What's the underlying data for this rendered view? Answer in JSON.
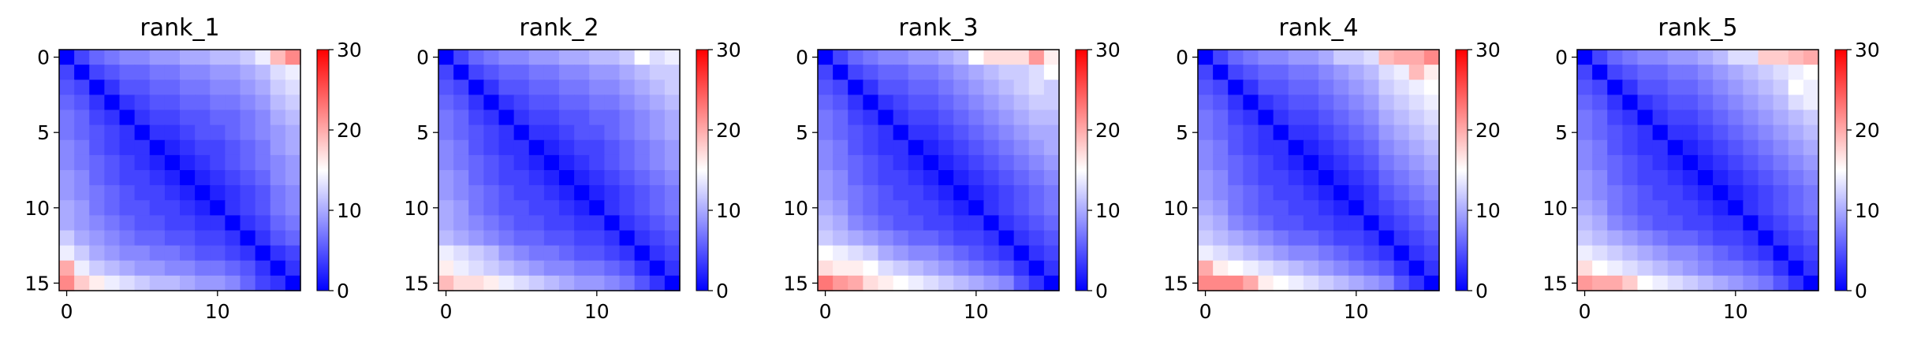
{
  "colorbar": {
    "min": 0,
    "max": 30,
    "ticks": [
      "0",
      "10",
      "20",
      "30"
    ],
    "colors": [
      "#0000ff",
      "#ffffff",
      "#ff0000"
    ],
    "colormap": "bwr"
  },
  "chart_data": [
    {
      "type": "heatmap",
      "title": "rank_1",
      "size": 16,
      "x_ticks": [
        "0",
        "10"
      ],
      "y_ticks": [
        "0",
        "5",
        "10",
        "15"
      ],
      "values": [
        [
          0,
          4,
          6,
          7,
          8,
          8,
          9,
          9,
          10,
          10,
          11,
          11,
          12,
          14,
          19,
          22
        ],
        [
          4,
          0,
          4,
          5,
          6,
          6,
          7,
          7,
          8,
          8,
          9,
          9,
          10,
          11,
          13,
          14
        ],
        [
          5,
          4,
          0,
          3,
          5,
          5,
          6,
          6,
          7,
          7,
          8,
          8,
          9,
          10,
          12,
          13
        ],
        [
          6,
          5,
          3,
          0,
          3,
          4,
          5,
          5,
          6,
          6,
          7,
          7,
          8,
          9,
          11,
          12
        ],
        [
          7,
          6,
          4,
          3,
          0,
          3,
          4,
          4,
          5,
          5,
          6,
          6,
          7,
          8,
          10,
          11
        ],
        [
          7,
          6,
          5,
          4,
          3,
          0,
          3,
          3,
          4,
          5,
          5,
          6,
          7,
          8,
          9,
          10
        ],
        [
          8,
          7,
          5,
          4,
          3,
          3,
          0,
          2,
          3,
          4,
          4,
          5,
          6,
          7,
          9,
          10
        ],
        [
          8,
          7,
          6,
          5,
          4,
          3,
          2,
          0,
          2,
          3,
          4,
          5,
          6,
          7,
          8,
          9
        ],
        [
          9,
          8,
          6,
          5,
          4,
          4,
          3,
          2,
          0,
          2,
          3,
          4,
          5,
          6,
          8,
          9
        ],
        [
          9,
          8,
          7,
          6,
          5,
          4,
          4,
          3,
          2,
          0,
          2,
          3,
          4,
          5,
          7,
          8
        ],
        [
          10,
          9,
          7,
          6,
          5,
          5,
          4,
          4,
          3,
          2,
          0,
          3,
          4,
          5,
          7,
          8
        ],
        [
          10,
          9,
          8,
          7,
          6,
          5,
          5,
          4,
          4,
          3,
          3,
          0,
          3,
          4,
          6,
          7
        ],
        [
          12,
          10,
          9,
          8,
          7,
          6,
          6,
          5,
          5,
          4,
          4,
          3,
          0,
          3,
          5,
          6
        ],
        [
          14,
          12,
          10,
          9,
          8,
          8,
          7,
          7,
          6,
          5,
          5,
          4,
          3,
          0,
          3,
          4
        ],
        [
          20,
          14,
          12,
          11,
          10,
          9,
          9,
          8,
          8,
          7,
          7,
          6,
          5,
          3,
          0,
          3
        ],
        [
          22,
          18,
          16,
          14,
          13,
          12,
          11,
          11,
          10,
          9,
          9,
          8,
          6,
          4,
          3,
          0
        ]
      ]
    },
    {
      "type": "heatmap",
      "title": "rank_2",
      "size": 16,
      "x_ticks": [
        "0",
        "10"
      ],
      "y_ticks": [
        "0",
        "5",
        "10",
        "15"
      ],
      "values": [
        [
          0,
          4,
          6,
          7,
          8,
          8,
          9,
          9,
          10,
          10,
          11,
          11,
          12,
          15,
          13,
          14
        ],
        [
          4,
          0,
          4,
          5,
          6,
          6,
          7,
          7,
          8,
          8,
          9,
          9,
          10,
          11,
          12,
          12
        ],
        [
          5,
          4,
          0,
          3,
          5,
          5,
          6,
          6,
          7,
          7,
          8,
          8,
          9,
          10,
          11,
          12
        ],
        [
          6,
          5,
          3,
          0,
          3,
          4,
          5,
          5,
          6,
          6,
          7,
          7,
          8,
          9,
          10,
          11
        ],
        [
          7,
          6,
          4,
          3,
          0,
          3,
          4,
          4,
          5,
          5,
          6,
          6,
          7,
          8,
          9,
          10
        ],
        [
          7,
          6,
          5,
          4,
          3,
          0,
          3,
          3,
          4,
          5,
          5,
          6,
          7,
          8,
          9,
          10
        ],
        [
          8,
          7,
          5,
          4,
          3,
          3,
          0,
          2,
          3,
          4,
          4,
          5,
          6,
          7,
          8,
          9
        ],
        [
          8,
          7,
          6,
          5,
          4,
          3,
          2,
          0,
          2,
          3,
          4,
          5,
          6,
          7,
          8,
          9
        ],
        [
          9,
          8,
          6,
          5,
          4,
          4,
          3,
          2,
          0,
          2,
          3,
          4,
          5,
          6,
          7,
          8
        ],
        [
          9,
          8,
          7,
          6,
          5,
          4,
          4,
          3,
          2,
          0,
          2,
          3,
          4,
          5,
          6,
          7
        ],
        [
          10,
          9,
          7,
          6,
          5,
          5,
          4,
          4,
          3,
          2,
          0,
          3,
          4,
          5,
          6,
          7
        ],
        [
          10,
          9,
          8,
          7,
          6,
          5,
          5,
          4,
          4,
          3,
          3,
          0,
          3,
          4,
          5,
          6
        ],
        [
          11,
          10,
          9,
          8,
          7,
          6,
          6,
          5,
          5,
          4,
          4,
          3,
          0,
          3,
          4,
          5
        ],
        [
          14,
          13,
          12,
          11,
          9,
          8,
          7,
          7,
          6,
          5,
          5,
          4,
          3,
          0,
          3,
          4
        ],
        [
          16,
          14,
          13,
          12,
          11,
          10,
          9,
          8,
          8,
          7,
          7,
          6,
          5,
          3,
          0,
          3
        ],
        [
          19,
          17,
          17,
          16,
          14,
          13,
          12,
          11,
          10,
          9,
          9,
          8,
          7,
          5,
          3,
          0
        ]
      ]
    },
    {
      "type": "heatmap",
      "title": "rank_3",
      "size": 16,
      "x_ticks": [
        "0",
        "10"
      ],
      "y_ticks": [
        "0",
        "5",
        "10",
        "15"
      ],
      "values": [
        [
          0,
          4,
          6,
          7,
          8,
          8,
          9,
          9,
          10,
          11,
          15,
          17,
          17,
          17,
          21,
          16
        ],
        [
          4,
          0,
          4,
          5,
          6,
          6,
          7,
          7,
          8,
          9,
          10,
          11,
          12,
          12,
          13,
          15
        ],
        [
          5,
          4,
          0,
          3,
          5,
          5,
          6,
          6,
          7,
          8,
          9,
          10,
          11,
          12,
          13,
          12
        ],
        [
          6,
          5,
          3,
          0,
          3,
          4,
          5,
          5,
          6,
          7,
          8,
          9,
          10,
          11,
          12,
          12
        ],
        [
          7,
          6,
          4,
          3,
          0,
          3,
          4,
          4,
          5,
          6,
          7,
          8,
          9,
          10,
          11,
          11
        ],
        [
          7,
          6,
          5,
          4,
          3,
          0,
          3,
          3,
          4,
          5,
          6,
          7,
          8,
          9,
          10,
          10
        ],
        [
          8,
          7,
          5,
          4,
          3,
          3,
          0,
          2,
          3,
          4,
          5,
          6,
          7,
          8,
          9,
          10
        ],
        [
          8,
          7,
          6,
          5,
          4,
          3,
          2,
          0,
          2,
          3,
          4,
          5,
          6,
          7,
          8,
          9
        ],
        [
          9,
          8,
          6,
          5,
          4,
          4,
          3,
          2,
          0,
          2,
          3,
          4,
          5,
          6,
          7,
          8
        ],
        [
          9,
          8,
          7,
          6,
          5,
          4,
          4,
          3,
          2,
          0,
          2,
          3,
          4,
          5,
          6,
          7
        ],
        [
          10,
          9,
          7,
          6,
          5,
          5,
          4,
          4,
          3,
          2,
          0,
          3,
          4,
          5,
          6,
          7
        ],
        [
          11,
          10,
          8,
          7,
          6,
          5,
          5,
          4,
          4,
          3,
          3,
          0,
          3,
          4,
          5,
          6
        ],
        [
          12,
          11,
          10,
          9,
          8,
          7,
          6,
          6,
          5,
          4,
          4,
          3,
          0,
          3,
          4,
          5
        ],
        [
          15,
          14,
          13,
          12,
          10,
          9,
          8,
          8,
          7,
          6,
          5,
          4,
          3,
          0,
          3,
          4
        ],
        [
          17,
          16,
          16,
          15,
          13,
          12,
          11,
          10,
          9,
          8,
          7,
          6,
          5,
          3,
          0,
          3
        ],
        [
          23,
          21,
          20,
          17,
          16,
          15,
          14,
          13,
          12,
          11,
          10,
          9,
          8,
          5,
          3,
          0
        ]
      ]
    },
    {
      "type": "heatmap",
      "title": "rank_4",
      "size": 16,
      "x_ticks": [
        "0",
        "10"
      ],
      "y_ticks": [
        "0",
        "5",
        "10",
        "15"
      ],
      "values": [
        [
          0,
          4,
          6,
          7,
          8,
          8,
          9,
          9,
          10,
          12,
          12,
          13,
          19,
          20,
          20,
          22
        ],
        [
          4,
          0,
          4,
          5,
          6,
          6,
          7,
          7,
          8,
          9,
          10,
          11,
          13,
          14,
          19,
          16
        ],
        [
          5,
          4,
          0,
          3,
          5,
          5,
          6,
          6,
          7,
          8,
          9,
          10,
          12,
          13,
          14,
          15
        ],
        [
          6,
          5,
          3,
          0,
          3,
          4,
          5,
          5,
          6,
          7,
          8,
          9,
          11,
          12,
          13,
          14
        ],
        [
          7,
          6,
          4,
          3,
          0,
          3,
          4,
          4,
          5,
          6,
          7,
          8,
          10,
          11,
          12,
          13
        ],
        [
          7,
          6,
          5,
          4,
          3,
          0,
          3,
          3,
          4,
          5,
          6,
          7,
          9,
          10,
          11,
          12
        ],
        [
          8,
          7,
          5,
          4,
          3,
          3,
          0,
          2,
          3,
          4,
          5,
          6,
          8,
          9,
          10,
          11
        ],
        [
          8,
          7,
          6,
          5,
          4,
          3,
          2,
          0,
          2,
          3,
          4,
          5,
          7,
          8,
          9,
          10
        ],
        [
          9,
          8,
          6,
          5,
          4,
          4,
          3,
          2,
          0,
          2,
          3,
          4,
          6,
          7,
          8,
          9
        ],
        [
          9,
          8,
          7,
          6,
          5,
          4,
          4,
          3,
          2,
          0,
          2,
          3,
          5,
          6,
          7,
          8
        ],
        [
          10,
          9,
          7,
          6,
          5,
          5,
          4,
          4,
          3,
          2,
          0,
          3,
          4,
          5,
          6,
          7
        ],
        [
          11,
          10,
          8,
          7,
          6,
          5,
          5,
          4,
          4,
          3,
          3,
          0,
          3,
          4,
          5,
          6
        ],
        [
          12,
          11,
          10,
          9,
          8,
          7,
          6,
          6,
          5,
          4,
          4,
          3,
          0,
          3,
          4,
          5
        ],
        [
          14,
          13,
          12,
          11,
          10,
          9,
          8,
          8,
          7,
          6,
          5,
          4,
          3,
          0,
          3,
          4
        ],
        [
          20,
          16,
          15,
          14,
          13,
          12,
          11,
          10,
          9,
          8,
          7,
          6,
          5,
          3,
          0,
          3
        ],
        [
          22,
          22,
          22,
          20,
          16,
          15,
          14,
          13,
          12,
          11,
          10,
          9,
          8,
          5,
          3,
          0
        ]
      ]
    },
    {
      "type": "heatmap",
      "title": "rank_5",
      "size": 16,
      "x_ticks": [
        "0",
        "10"
      ],
      "y_ticks": [
        "0",
        "5",
        "10",
        "15"
      ],
      "values": [
        [
          0,
          4,
          6,
          7,
          8,
          8,
          9,
          9,
          10,
          11,
          13,
          13,
          18,
          18,
          19,
          20
        ],
        [
          4,
          0,
          4,
          5,
          6,
          6,
          7,
          7,
          8,
          9,
          10,
          11,
          12,
          13,
          14,
          15
        ],
        [
          5,
          4,
          0,
          3,
          5,
          5,
          6,
          6,
          7,
          8,
          9,
          10,
          11,
          12,
          15,
          14
        ],
        [
          6,
          5,
          3,
          0,
          3,
          4,
          5,
          5,
          6,
          7,
          8,
          9,
          10,
          11,
          13,
          14
        ],
        [
          7,
          6,
          4,
          3,
          0,
          3,
          4,
          4,
          5,
          6,
          7,
          8,
          9,
          10,
          11,
          12
        ],
        [
          7,
          6,
          5,
          4,
          3,
          0,
          3,
          3,
          4,
          5,
          6,
          7,
          8,
          9,
          10,
          11
        ],
        [
          8,
          7,
          5,
          4,
          3,
          3,
          0,
          2,
          3,
          4,
          5,
          6,
          7,
          8,
          9,
          10
        ],
        [
          8,
          7,
          6,
          5,
          4,
          3,
          2,
          0,
          2,
          3,
          4,
          5,
          6,
          7,
          8,
          9
        ],
        [
          9,
          8,
          6,
          5,
          4,
          4,
          3,
          2,
          0,
          2,
          3,
          4,
          5,
          6,
          7,
          8
        ],
        [
          9,
          8,
          7,
          6,
          5,
          4,
          4,
          3,
          2,
          0,
          2,
          3,
          4,
          5,
          6,
          7
        ],
        [
          10,
          9,
          7,
          6,
          5,
          5,
          4,
          4,
          3,
          2,
          0,
          3,
          4,
          5,
          6,
          7
        ],
        [
          11,
          10,
          8,
          7,
          6,
          5,
          5,
          4,
          4,
          3,
          3,
          0,
          3,
          4,
          5,
          6
        ],
        [
          12,
          11,
          10,
          9,
          8,
          7,
          6,
          6,
          5,
          4,
          4,
          3,
          0,
          3,
          4,
          5
        ],
        [
          14,
          13,
          12,
          11,
          10,
          9,
          8,
          8,
          7,
          6,
          5,
          4,
          3,
          0,
          3,
          4
        ],
        [
          17,
          15,
          14,
          13,
          12,
          11,
          10,
          9,
          8,
          7,
          7,
          6,
          5,
          3,
          0,
          3
        ],
        [
          21,
          20,
          20,
          18,
          15,
          14,
          13,
          12,
          11,
          10,
          9,
          8,
          7,
          5,
          3,
          0
        ]
      ]
    }
  ]
}
